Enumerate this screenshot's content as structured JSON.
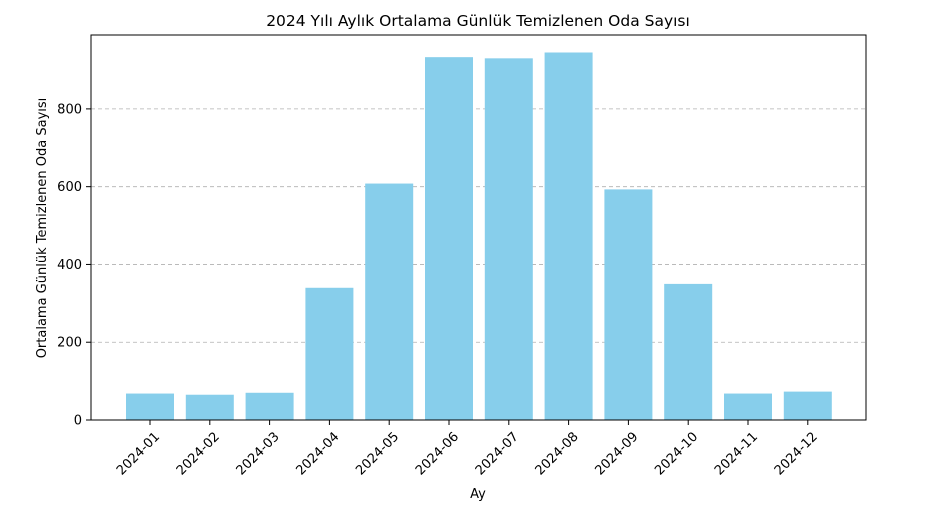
{
  "chart_data": {
    "type": "bar",
    "title": "2024 Yılı Aylık Ortalama Günlük Temizlenen Oda Sayısı",
    "xlabel": "Ay",
    "ylabel": "Ortalama Günlük Temizlenen Oda Sayısı",
    "categories": [
      "2024-01",
      "2024-02",
      "2024-03",
      "2024-04",
      "2024-05",
      "2024-06",
      "2024-07",
      "2024-08",
      "2024-09",
      "2024-10",
      "2024-11",
      "2024-12"
    ],
    "values": [
      68,
      65,
      70,
      340,
      608,
      933,
      930,
      945,
      593,
      350,
      68,
      73
    ],
    "ylim": [
      0,
      990
    ],
    "yticks": [
      0,
      200,
      400,
      600,
      800
    ],
    "grid": "y-dashed",
    "bar_color": "#87CEEB"
  }
}
